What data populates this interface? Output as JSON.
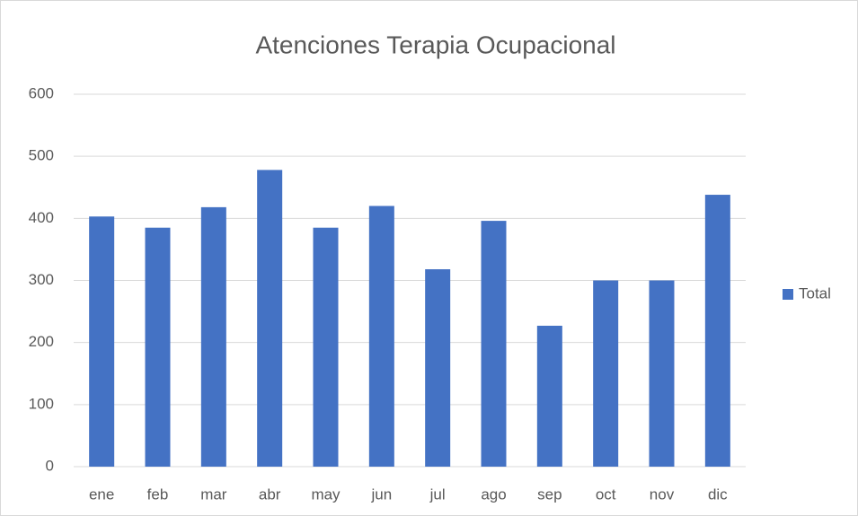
{
  "chart_data": {
    "type": "bar",
    "title": "Atenciones Terapia Ocupacional",
    "categories": [
      "ene",
      "feb",
      "mar",
      "abr",
      "may",
      "jun",
      "jul",
      "ago",
      "sep",
      "oct",
      "nov",
      "dic"
    ],
    "series": [
      {
        "name": "Total",
        "color": "#4472c4",
        "values": [
          403,
          385,
          418,
          478,
          385,
          420,
          318,
          396,
          227,
          300,
          300,
          438
        ]
      }
    ],
    "ylim": [
      0,
      600
    ],
    "yticks": [
      0,
      100,
      200,
      300,
      400,
      500,
      600
    ],
    "grid": true,
    "legend": "right"
  }
}
